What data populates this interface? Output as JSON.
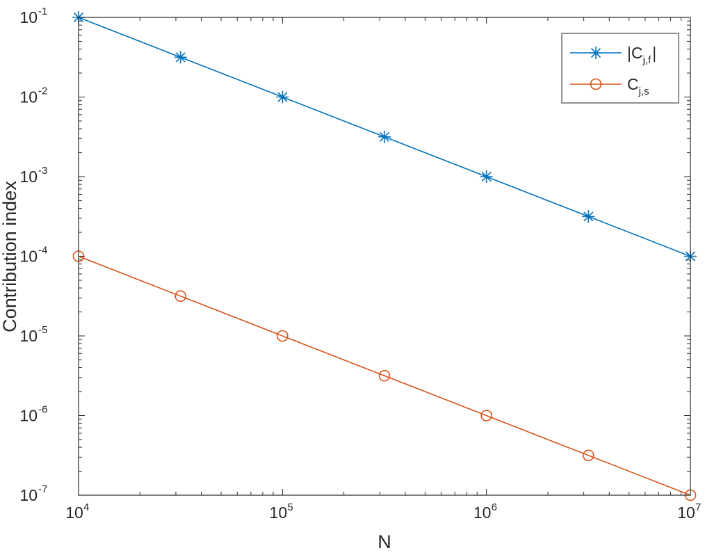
{
  "chart_data": {
    "type": "line",
    "x_scale": "log",
    "y_scale": "log",
    "xlabel": "N",
    "ylabel": "Contribution index",
    "xlim": [
      10000,
      10000000
    ],
    "ylim": [
      1e-07,
      0.1
    ],
    "x_ticks": [
      {
        "value": 10000,
        "base": "10",
        "exp": "4"
      },
      {
        "value": 100000,
        "base": "10",
        "exp": "5"
      },
      {
        "value": 1000000,
        "base": "10",
        "exp": "6"
      },
      {
        "value": 10000000,
        "base": "10",
        "exp": "7"
      }
    ],
    "y_ticks": [
      {
        "value": 1e-07,
        "base": "10",
        "exp": "-7"
      },
      {
        "value": 1e-06,
        "base": "10",
        "exp": "-6"
      },
      {
        "value": 1e-05,
        "base": "10",
        "exp": "-5"
      },
      {
        "value": 0.0001,
        "base": "10",
        "exp": "-4"
      },
      {
        "value": 0.001,
        "base": "10",
        "exp": "-3"
      },
      {
        "value": 0.01,
        "base": "10",
        "exp": "-2"
      },
      {
        "value": 0.1,
        "base": "10",
        "exp": "-1"
      }
    ],
    "grid": false,
    "legend_position": "top-right",
    "x": [
      10000,
      31623,
      100000,
      316228,
      1000000,
      3162278,
      10000000
    ],
    "series": [
      {
        "name": "|C",
        "name_sub": "j,f",
        "name_suffix": "|",
        "color": "#0072BD",
        "marker": "asterisk",
        "values": [
          0.1,
          0.0316,
          0.01,
          0.00316,
          0.001,
          0.000316,
          0.0001
        ]
      },
      {
        "name": "C",
        "name_sub": "j,s",
        "name_suffix": "",
        "color": "#D95319",
        "marker": "circle",
        "values": [
          0.0001,
          3.16e-05,
          1e-05,
          3.16e-06,
          1e-06,
          3.16e-07,
          1e-07
        ]
      }
    ]
  }
}
